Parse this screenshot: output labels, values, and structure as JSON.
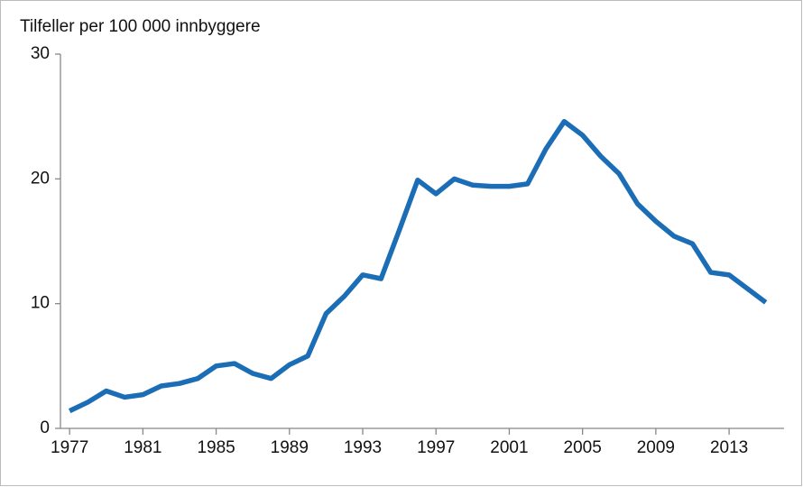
{
  "chart_data": {
    "type": "line",
    "title": "Tilfeller per 100 000 innbyggere",
    "x": [
      1977,
      1978,
      1979,
      1980,
      1981,
      1982,
      1983,
      1984,
      1985,
      1986,
      1987,
      1988,
      1989,
      1990,
      1991,
      1992,
      1993,
      1994,
      1995,
      1996,
      1997,
      1998,
      1999,
      2000,
      2001,
      2002,
      2003,
      2004,
      2005,
      2006,
      2007,
      2008,
      2009,
      2010,
      2011,
      2012,
      2013,
      2014,
      2015
    ],
    "series": [
      {
        "color": "#1b6db5",
        "values": [
          1.4,
          2.1,
          3.0,
          2.5,
          2.7,
          3.4,
          3.6,
          4.0,
          5.0,
          5.2,
          4.4,
          4.0,
          5.1,
          5.8,
          9.2,
          10.6,
          12.3,
          12.0,
          15.9,
          19.9,
          18.8,
          20.0,
          19.5,
          19.4,
          19.4,
          19.6,
          22.4,
          24.6,
          23.5,
          21.8,
          20.4,
          18.0,
          16.6,
          15.4,
          14.8,
          12.5,
          12.3,
          11.2,
          10.1
        ]
      }
    ],
    "xlim": [
      1976.5,
      2016
    ],
    "xticks": [
      1977,
      1981,
      1985,
      1989,
      1993,
      1997,
      2001,
      2005,
      2009,
      2013
    ],
    "ylim": [
      0,
      30
    ],
    "yticks": [
      0,
      10,
      20,
      30
    ]
  }
}
